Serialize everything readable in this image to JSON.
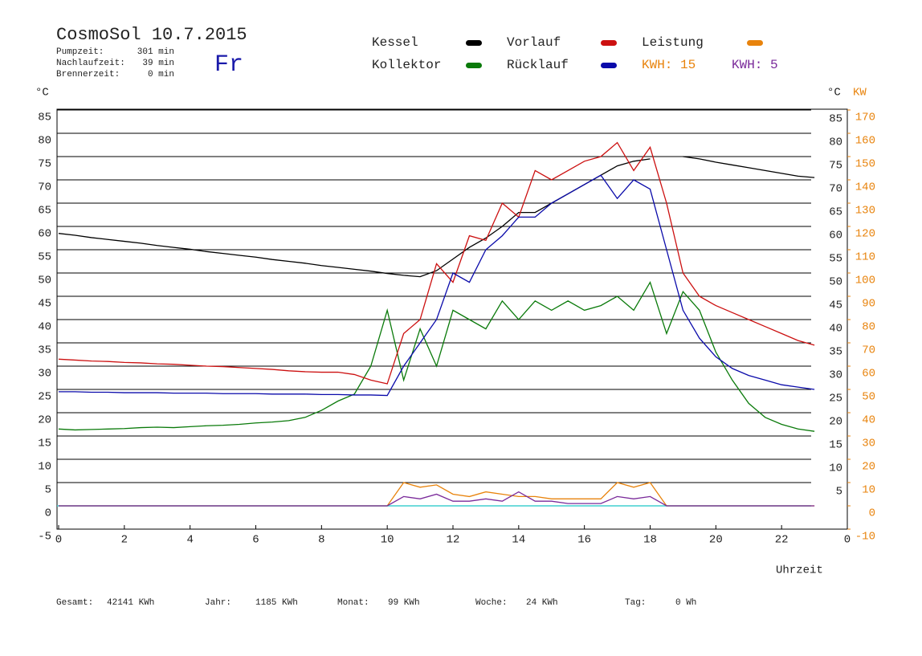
{
  "chart_data": {
    "type": "line",
    "title": "CosmoSol 10.7.2015",
    "weekday": "Fr",
    "header_stats": [
      [
        "Pumpzeit:",
        "301 min"
      ],
      [
        "Nachlaufzeit:",
        "39 min"
      ],
      [
        "Brennerzeit:",
        "0 min"
      ]
    ],
    "footer_stats": [
      [
        "Gesamt:",
        "42141 KWh"
      ],
      [
        "Jahr:",
        "1185 KWh"
      ],
      [
        "Monat:",
        "99 KWh"
      ],
      [
        "Woche:",
        "24 KWh"
      ],
      [
        "Tag:",
        "0 Wh"
      ]
    ],
    "y_unit": "°C",
    "y_right_unit": "°C",
    "y2_unit": "KW",
    "x_label": "Uhrzeit",
    "extra_legend": [
      {
        "text": "KWH: 15",
        "color": "#e8830c"
      },
      {
        "text": "KWH: 5",
        "color": "#7a2a9a"
      }
    ],
    "x": [
      0,
      0.5,
      1,
      1.5,
      2,
      2.5,
      3,
      3.5,
      4,
      4.5,
      5,
      5.5,
      6,
      6.5,
      7,
      7.5,
      8,
      8.5,
      9,
      9.5,
      10,
      10.5,
      11,
      11.5,
      12,
      12.5,
      13,
      13.5,
      14,
      14.5,
      15,
      15.5,
      16,
      16.5,
      17,
      17.5,
      18,
      18.5,
      19,
      19.5,
      20,
      20.5,
      21,
      21.5,
      22,
      22.5,
      23
    ],
    "series": [
      {
        "name": "Kessel",
        "color": "#000000",
        "values": [
          58.5,
          58.1,
          57.6,
          57.2,
          56.8,
          56.4,
          55.9,
          55.5,
          55.1,
          54.6,
          54.2,
          53.8,
          53.4,
          52.9,
          52.5,
          52.1,
          51.6,
          51.2,
          50.8,
          50.4,
          49.9,
          49.5,
          49.2,
          50.5,
          53,
          55.5,
          57.5,
          60,
          63,
          63,
          65,
          67,
          69,
          71,
          73,
          74,
          74.5,
          null,
          75,
          74.5,
          73.8,
          73.2,
          72.6,
          72,
          71.4,
          70.8,
          70.5
        ]
      },
      {
        "name": "Kollektor",
        "color": "#0a7a0a",
        "values": [
          16.5,
          16.3,
          16.4,
          16.5,
          16.6,
          16.8,
          16.9,
          16.8,
          17,
          17.2,
          17.3,
          17.5,
          17.8,
          18,
          18.3,
          19,
          20.5,
          22.5,
          24,
          30,
          42,
          27,
          38,
          30,
          42,
          40,
          38,
          44,
          40,
          44,
          42,
          44,
          42,
          43,
          45,
          42,
          48,
          37,
          46,
          42,
          33,
          27,
          22,
          19,
          17.5,
          16.5,
          16
        ]
      },
      {
        "name": "Vorlauf",
        "color": "#cc1010",
        "values": [
          31.5,
          31.3,
          31.1,
          31,
          30.8,
          30.7,
          30.5,
          30.4,
          30.2,
          30,
          29.9,
          29.7,
          29.5,
          29.3,
          29,
          28.8,
          28.7,
          28.7,
          28.2,
          27,
          26.2,
          37,
          40,
          52,
          48,
          58,
          57,
          65,
          62,
          72,
          70,
          72,
          74,
          75,
          78,
          72,
          77,
          65,
          50,
          45,
          43,
          41.5,
          40,
          38.5,
          37,
          35.5,
          34.5
        ]
      },
      {
        "name": "Rücklauf",
        "color": "#0a0aaa",
        "values": [
          24.5,
          24.5,
          24.4,
          24.4,
          24.3,
          24.3,
          24.3,
          24.2,
          24.2,
          24.2,
          24.1,
          24.1,
          24.1,
          24,
          24,
          24,
          23.9,
          23.9,
          23.8,
          23.8,
          23.7,
          30,
          35,
          40,
          50,
          48,
          55,
          58,
          62,
          62,
          65,
          67,
          69,
          71,
          66,
          70,
          68,
          55,
          42,
          36,
          32,
          29.5,
          28,
          27,
          26,
          25.5,
          25
        ]
      },
      {
        "name": "Leistung",
        "color": "#e8830c",
        "axis": "y2",
        "values": [
          0,
          0,
          0,
          0,
          0,
          0,
          0,
          0,
          0,
          0,
          0,
          0,
          0,
          0,
          0,
          0,
          0,
          0,
          0,
          0,
          0,
          10,
          8,
          9,
          5,
          4,
          6,
          5,
          4,
          4,
          3,
          3,
          3,
          3,
          10,
          8,
          10,
          0,
          0,
          0,
          0,
          0,
          0,
          0,
          0,
          0,
          0
        ]
      },
      {
        "color": "#7a2a9a",
        "axis": "y2",
        "values": [
          0,
          0,
          0,
          0,
          0,
          0,
          0,
          0,
          0,
          0,
          0,
          0,
          0,
          0,
          0,
          0,
          0,
          0,
          0,
          0,
          0,
          4,
          3,
          5,
          2,
          2,
          3,
          2,
          6,
          2,
          2,
          1,
          1,
          1,
          4,
          3,
          4,
          0,
          0,
          0,
          0,
          0,
          0,
          0,
          0,
          0,
          0
        ]
      }
    ],
    "xlim": [
      0,
      24
    ],
    "xticks": [
      0,
      2,
      4,
      6,
      8,
      10,
      12,
      14,
      16,
      18,
      20,
      22,
      {
        "value": 24,
        "label": "0"
      }
    ],
    "ylim": [
      -5,
      85
    ],
    "yticks": [
      -5,
      0,
      5,
      10,
      15,
      20,
      25,
      30,
      35,
      40,
      45,
      50,
      55,
      60,
      65,
      70,
      75,
      80,
      85
    ],
    "y_right_ticks": [
      5,
      10,
      15,
      20,
      25,
      30,
      35,
      40,
      45,
      50,
      55,
      60,
      65,
      70,
      75,
      80,
      85
    ],
    "y2lim": [
      -10,
      170
    ],
    "y2ticks": [
      -10,
      0,
      10,
      20,
      30,
      40,
      50,
      60,
      70,
      80,
      90,
      100,
      110,
      120,
      130,
      140,
      150,
      160,
      170
    ],
    "y2_color": "#e8830c",
    "zero_line_color": "#40d0d0",
    "grid": true
  }
}
